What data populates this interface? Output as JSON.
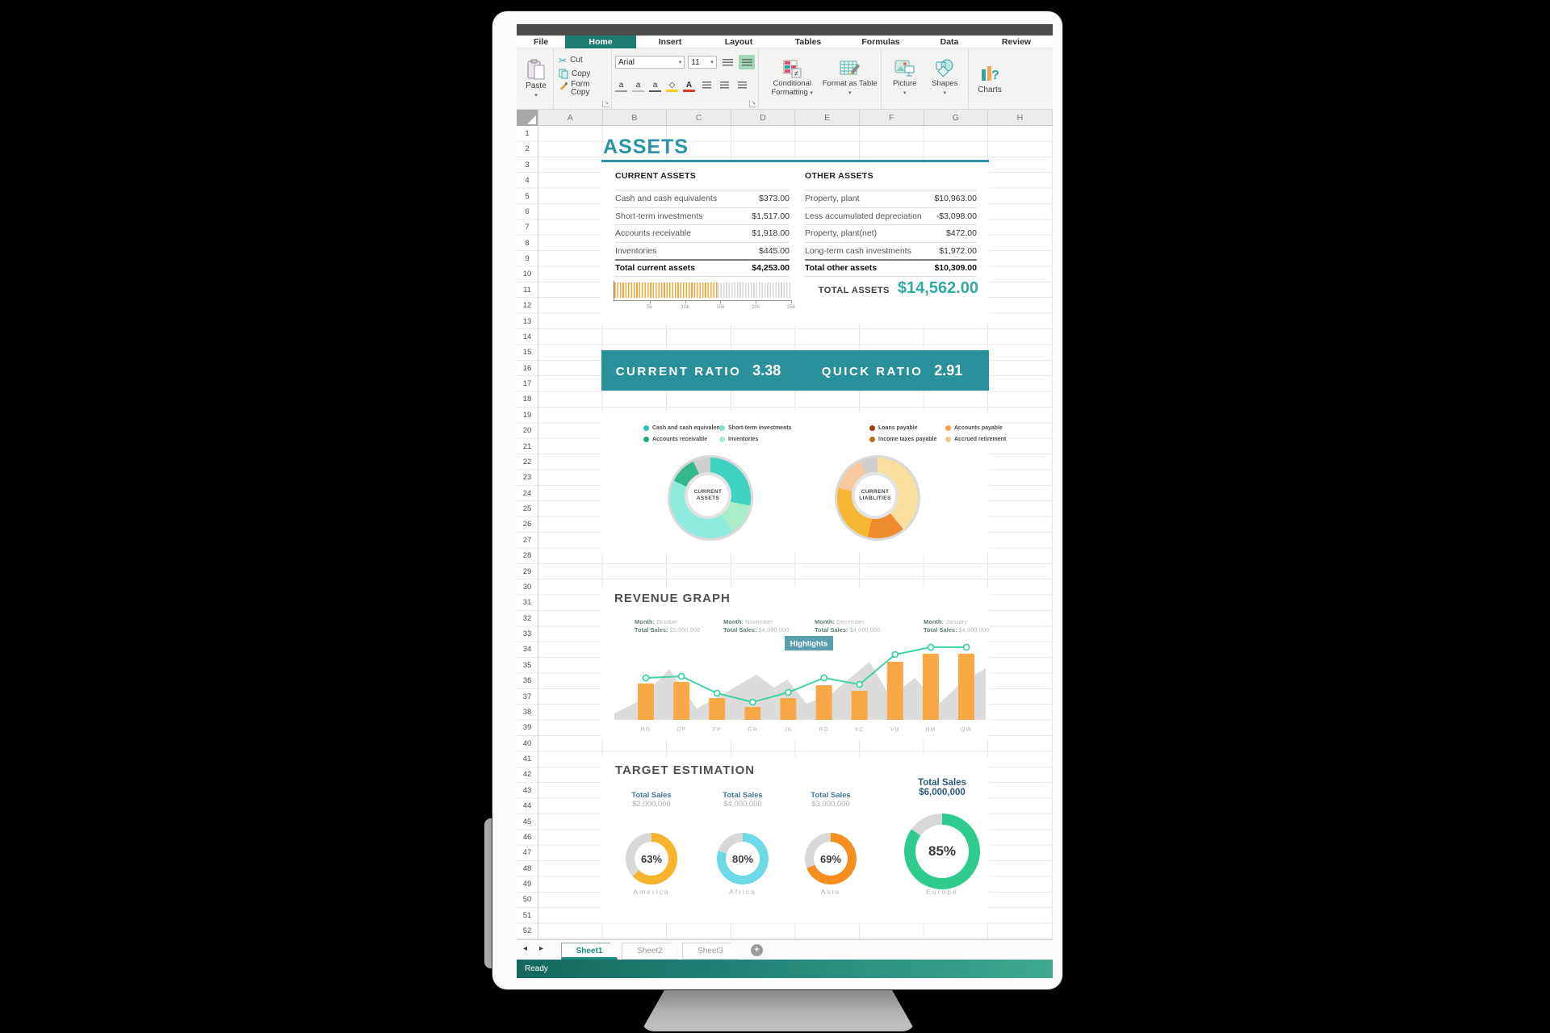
{
  "app": {
    "tabs": {
      "items": [
        "File",
        "Home",
        "Insert",
        "Layout",
        "Tables",
        "Formulas",
        "Data",
        "Review"
      ],
      "active": "Home"
    },
    "ribbon": {
      "paste": "Paste",
      "cut": "Cut",
      "copy": "Copy",
      "form_copy": "Form Copy",
      "font_name": "Arial",
      "font_size": "11",
      "conditional_formatting": "Conditional Formatting",
      "format_as_table": "Format as Table",
      "picture": "Picture",
      "shapes": "Shapes",
      "charts": "Charts"
    },
    "grid": {
      "columns": [
        "A",
        "B",
        "C",
        "D",
        "E",
        "F",
        "G",
        "H"
      ],
      "row_start": 1,
      "row_end": 52
    },
    "assets": {
      "title": "ASSETS",
      "current": {
        "header": "CURRENT ASSETS",
        "rows": [
          {
            "label": "Cash and cash equivalents",
            "value": "$373.00"
          },
          {
            "label": "Short-term investments",
            "value": "$1,517.00"
          },
          {
            "label": "Accounts receivable",
            "value": "$1,918.00"
          },
          {
            "label": "Inventories",
            "value": "$445.00"
          }
        ],
        "total": {
          "label": "Total current assets",
          "value": "$4,253.00"
        }
      },
      "other": {
        "header": "OTHER ASSETS",
        "rows": [
          {
            "label": "Property, plant",
            "value": "$10,963.00"
          },
          {
            "label": "Less accumulated depreciation",
            "value": "-$3,098.00"
          },
          {
            "label": "Property, plant(net)",
            "value": "$472.00"
          },
          {
            "label": "Long-term cash investments",
            "value": "$1,972.00"
          }
        ],
        "total": {
          "label": "Total other assets",
          "value": "$10,309.00"
        }
      },
      "gauge": {
        "ticks": [
          "5k",
          "10k",
          "15k",
          "20k",
          "25k"
        ],
        "value": 14562,
        "max": 25000
      },
      "total_label": "TOTAL ASSETS",
      "total_value": "$14,562.00"
    },
    "ratios": {
      "current_label": "CURRENT RATIO",
      "current_value": "3.38",
      "quick_label": "QUICK RATIO",
      "quick_value": "2.91"
    },
    "donut_section": {
      "legend_left": [
        {
          "label": "Cash and cash equivalents",
          "color": "#2cc4b4"
        },
        {
          "label": "Accounts receivable",
          "color": "#23a585"
        },
        {
          "label": "Short-term investments",
          "color": "#7fe3cb"
        },
        {
          "label": "Inventories",
          "color": "#abeccd"
        }
      ],
      "legend_right": [
        {
          "label": "Loans payable",
          "color": "#a33b0c"
        },
        {
          "label": "Income taxes payable",
          "color": "#bc6c1d"
        },
        {
          "label": "Accounts payable",
          "color": "#f1a44c"
        },
        {
          "label": "Accrued retirement",
          "color": "#f5c493"
        }
      ]
    },
    "revenue": {
      "title": "REVENUE GRAPH",
      "month_label": "Month:",
      "sales_label": "Total Sales:",
      "stats": [
        {
          "month": "October",
          "sales": "$5,000,000"
        },
        {
          "month": "November",
          "sales": "$4,000,000"
        },
        {
          "month": "December",
          "sales": "$4,000,000"
        },
        {
          "month": "January",
          "sales": "$4,000,000"
        }
      ],
      "highlights": "Highlights"
    },
    "target": {
      "title": "TARGET ESTIMATION",
      "items": [
        {
          "label": "Total Sales",
          "amount": "$2,000,000",
          "percent": "63%",
          "region": "America",
          "ring_color": "#f6b32b",
          "emphasis": false
        },
        {
          "label": "Total Sales",
          "amount": "$4,000,000",
          "percent": "80%",
          "region": "Africa",
          "ring_color": "#6ed9e7",
          "emphasis": false
        },
        {
          "label": "Total Sales",
          "amount": "$3,000,000",
          "percent": "69%",
          "region": "Asia",
          "ring_color": "#f78f20",
          "emphasis": false
        },
        {
          "label": "Total Sales",
          "amount": "$6,000,000",
          "percent": "85%",
          "region": "Europe",
          "ring_color": "#2fcb8d",
          "emphasis": true
        }
      ],
      "rest_color": "#d8d8d8"
    },
    "sheet_bar": {
      "tabs": [
        "Sheet1",
        "Sheet2",
        "Sheet3"
      ],
      "active": "Sheet1",
      "add": "+"
    },
    "status": "Ready"
  },
  "chart_data": [
    {
      "id": "current_assets_donut",
      "type": "pie",
      "variant": "donut",
      "center_label": [
        "CURRENT",
        "ASSETS"
      ],
      "segments": [
        {
          "color": "#3ed3c0",
          "pct": 28
        },
        {
          "color": "#a9ecc9",
          "pct": 13
        },
        {
          "color": "#8debdf",
          "pct": 41
        },
        {
          "color": "#35b88a",
          "pct": 11
        },
        {
          "color": "#cfcfcf",
          "pct": 7
        }
      ]
    },
    {
      "id": "current_liabilities_donut",
      "type": "pie",
      "variant": "donut",
      "center_label": [
        "CURRENT",
        "LIABLITIES"
      ],
      "segments": [
        {
          "color": "#fbdf9e",
          "pct": 39
        },
        {
          "color": "#ed8b2f",
          "pct": 15
        },
        {
          "color": "#f7b733",
          "pct": 25
        },
        {
          "color": "#f8c99e",
          "pct": 14
        },
        {
          "color": "#cfcfcf",
          "pct": 7
        }
      ]
    },
    {
      "id": "revenue_graph",
      "type": "bar",
      "variant": "bar+line",
      "title": "REVENUE GRAPH",
      "categories": [
        "RG",
        "DP",
        "FP",
        "GH",
        "JK",
        "RG",
        "XC",
        "VB",
        "NM",
        "QW"
      ],
      "series": [
        {
          "name": "revenue-bars",
          "values": [
            45,
            47,
            27,
            16,
            27,
            43,
            36,
            72,
            82,
            82
          ]
        },
        {
          "name": "trend-line",
          "values": [
            52,
            54,
            33,
            22,
            34,
            52,
            44,
            81,
            90,
            90
          ]
        }
      ],
      "units": "relative-pixels",
      "bar_color": "#f8a845",
      "line_color": "#41d3a0",
      "annotation": "Highlights"
    },
    {
      "id": "target_gauges",
      "type": "pie",
      "variant": "progress-rings",
      "items": [
        {
          "region": "America",
          "percent": 63,
          "total_sales": "$2,000,000"
        },
        {
          "region": "Africa",
          "percent": 80,
          "total_sales": "$4,000,000"
        },
        {
          "region": "Asia",
          "percent": 69,
          "total_sales": "$3,000,000"
        },
        {
          "region": "Europe",
          "percent": 85,
          "total_sales": "$6,000,000"
        }
      ]
    }
  ]
}
